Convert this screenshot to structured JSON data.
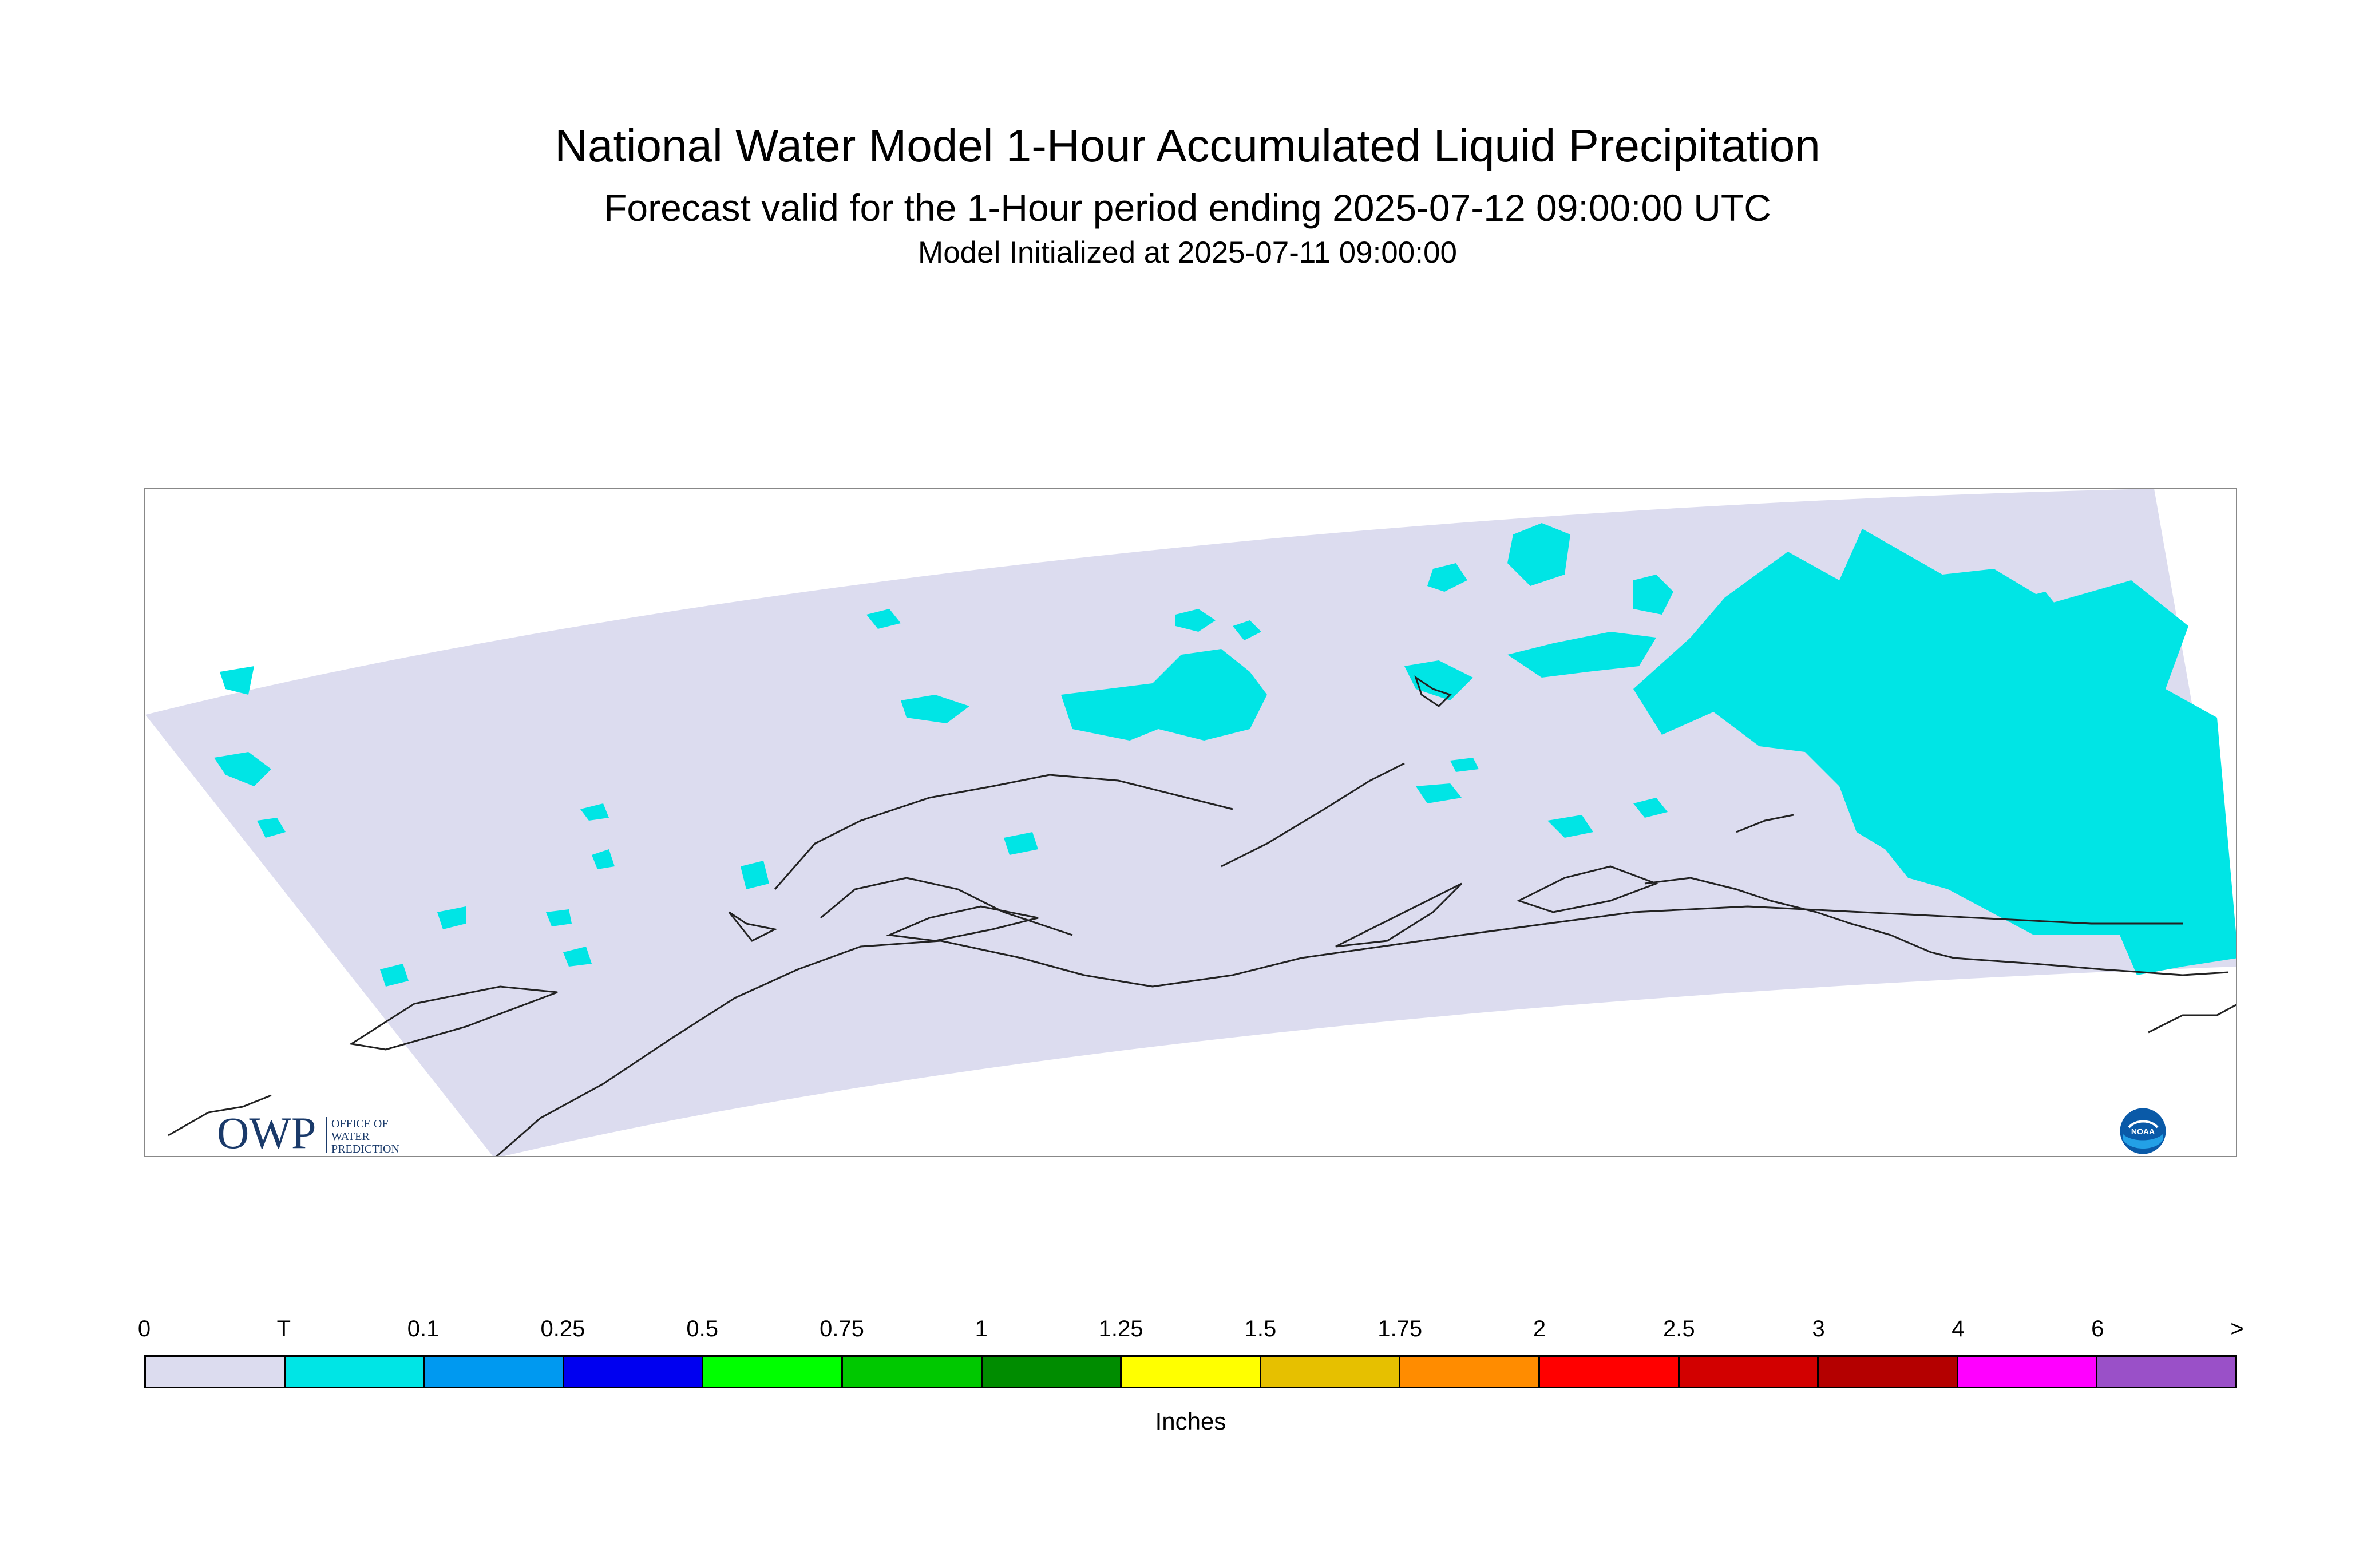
{
  "header": {
    "title": "National Water Model 1-Hour Accumulated Liquid Precipitation",
    "subtitle": "Forecast valid for the 1-Hour period ending 2025-07-12 09:00:00 UTC",
    "init": "Model Initialized at 2025-07-11 09:00:00"
  },
  "logos": {
    "owp_mark": "OWP",
    "owp_text_1": "OFFICE OF",
    "owp_text_2": "WATER",
    "owp_text_3": "PREDICTION",
    "noaa_text": "NOAA"
  },
  "map": {
    "domain_color": "#dcdcef",
    "precip_color": "#00e5e5",
    "coastline_color": "#222222"
  },
  "legend": {
    "units": "Inches",
    "labels": [
      "0",
      "T",
      "0.1",
      "0.25",
      "0.5",
      "0.75",
      "1",
      "1.25",
      "1.5",
      "1.75",
      "2",
      "2.5",
      "3",
      "4",
      "6",
      ">"
    ],
    "colors": [
      "#dcdcef",
      "#00e5e5",
      "#0099f0",
      "#0000f0",
      "#00ff00",
      "#00c800",
      "#008c00",
      "#ffff00",
      "#e6c000",
      "#ff8c00",
      "#ff0000",
      "#d20000",
      "#b40000",
      "#ff00ff",
      "#9a50c8"
    ]
  }
}
